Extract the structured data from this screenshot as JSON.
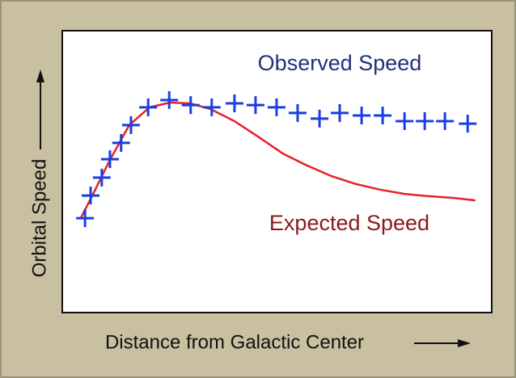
{
  "chart_data": {
    "type": "line",
    "x_label": "Distance from Galactic Center",
    "y_label": "Orbital Speed",
    "xlim": [
      0,
      100
    ],
    "ylim": [
      0,
      100
    ],
    "series": [
      {
        "name": "Observed Speed",
        "color": "#1a3fe0",
        "marker": "plus",
        "x": [
          5.3,
          6.6,
          9.2,
          11.1,
          13.7,
          16.0,
          20.0,
          24.9,
          29.9,
          34.8,
          40.1,
          45.0,
          49.9,
          54.8,
          59.9,
          64.6,
          69.7,
          74.6,
          79.7,
          84.4,
          89.1,
          94.4
        ],
        "values": [
          33.5,
          41.5,
          47.9,
          54.4,
          60.2,
          66.5,
          72.8,
          75.4,
          73.6,
          72.8,
          74.2,
          73.6,
          72.8,
          70.8,
          68.8,
          70.8,
          69.9,
          69.9,
          67.9,
          67.9,
          67.9,
          67.0
        ]
      },
      {
        "name": "Expected Speed",
        "color": "#e8202a",
        "marker": "none",
        "x": [
          4.3,
          7.2,
          10.9,
          15.6,
          20.3,
          25.0,
          29.8,
          34.5,
          40.1,
          45.8,
          51.4,
          57.1,
          62.7,
          68.4,
          74.0,
          79.7,
          85.3,
          91.0,
          96.2
        ],
        "values": [
          33.5,
          42.1,
          53.6,
          66.5,
          72.8,
          74.5,
          74.2,
          72.2,
          67.9,
          62.2,
          56.4,
          52.1,
          48.4,
          45.6,
          43.6,
          42.1,
          41.3,
          40.7,
          39.8
        ]
      }
    ]
  }
}
